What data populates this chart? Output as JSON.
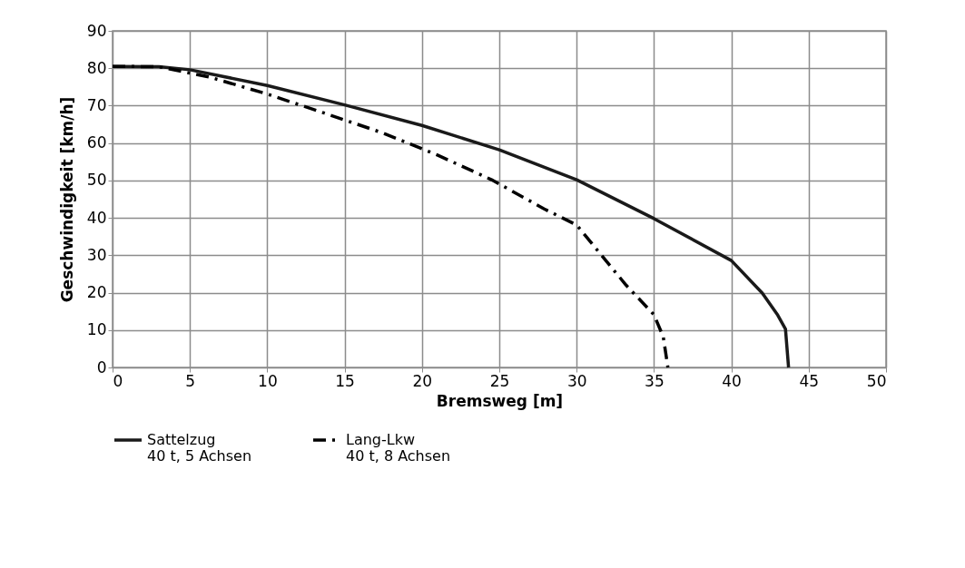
{
  "chart_data": {
    "type": "line",
    "xlabel": "Bremsweg [m]",
    "ylabel": "Geschwindigkeit  [km/h]",
    "xlim": [
      0,
      50
    ],
    "xticks": [
      0,
      5,
      10,
      15,
      20,
      25,
      30,
      35,
      40,
      45,
      50
    ],
    "ylim": [
      0,
      90
    ],
    "yticks": [
      0,
      10,
      20,
      30,
      40,
      50,
      60,
      70,
      80,
      90
    ],
    "grid": true,
    "legend": "bottom",
    "marker": "none",
    "series": [
      {
        "name": "Sattelzug\n40 t, 5 Achsen",
        "color": "#1a1a1a",
        "line_style": "solid",
        "x": [
          0,
          3,
          5,
          10,
          15,
          20,
          25,
          30,
          35,
          40,
          42,
          43,
          43.5,
          43.7
        ],
        "values": [
          80.5,
          80.4,
          79.6,
          75.4,
          70.2,
          64.7,
          58.2,
          50.2,
          39.8,
          28.6,
          19.9,
          14,
          10.3,
          0
        ]
      },
      {
        "name": "Lang-Lkw\n40 t, 8 Achsen",
        "color": "#000000",
        "line_style": "dashed",
        "x": [
          0,
          3,
          6.3,
          10,
          13.7,
          17.4,
          21,
          24.5,
          27.9,
          30,
          33.2,
          35,
          35.6,
          35.9
        ],
        "values": [
          80.5,
          80.4,
          77.6,
          73.1,
          68,
          62.8,
          56.8,
          50.2,
          42.4,
          38.1,
          22,
          14.1,
          8.2,
          0
        ]
      }
    ]
  }
}
